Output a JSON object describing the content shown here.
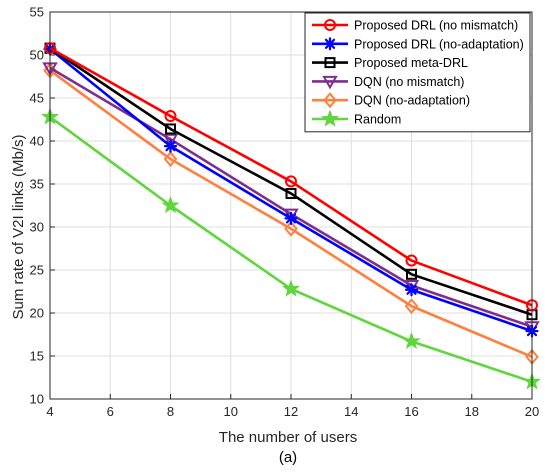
{
  "chart_data": {
    "type": "line",
    "title": "",
    "xlabel": "The number of users",
    "ylabel": "Sum rate of V2I links (Mb/s)",
    "caption": "(a)",
    "x": [
      4,
      8,
      12,
      16,
      20
    ],
    "xlim": [
      4,
      20
    ],
    "ylim": [
      10,
      55
    ],
    "xticks": [
      4,
      6,
      8,
      10,
      12,
      14,
      16,
      18,
      20
    ],
    "yticks": [
      10,
      15,
      20,
      25,
      30,
      35,
      40,
      45,
      50,
      55
    ],
    "grid": true,
    "legend_position": "top-right",
    "series": [
      {
        "name": "Proposed DRL (no mismatch)",
        "color": "#ff0000",
        "marker": "circle",
        "values": [
          50.8,
          42.9,
          35.3,
          26.1,
          20.9
        ]
      },
      {
        "name": "Proposed DRL (no-adaptation)",
        "color": "#0000ff",
        "marker": "asterisk",
        "values": [
          50.7,
          39.4,
          31.0,
          22.7,
          17.9
        ]
      },
      {
        "name": "Proposed meta-DRL",
        "color": "#000000",
        "marker": "square",
        "values": [
          50.8,
          41.4,
          33.9,
          24.5,
          19.8
        ]
      },
      {
        "name": "DQN (no mismatch)",
        "color": "#7e2f8e",
        "marker": "triangle-down",
        "values": [
          48.5,
          40.2,
          31.5,
          23.2,
          18.4
        ]
      },
      {
        "name": "DQN (no-adaptation)",
        "color": "#ff7f3f",
        "marker": "diamond",
        "values": [
          48.2,
          37.9,
          29.8,
          20.8,
          14.9
        ]
      },
      {
        "name": "Random",
        "color": "#5ed63c",
        "marker": "star",
        "values": [
          42.8,
          32.5,
          22.8,
          16.7,
          12.0
        ]
      }
    ]
  }
}
